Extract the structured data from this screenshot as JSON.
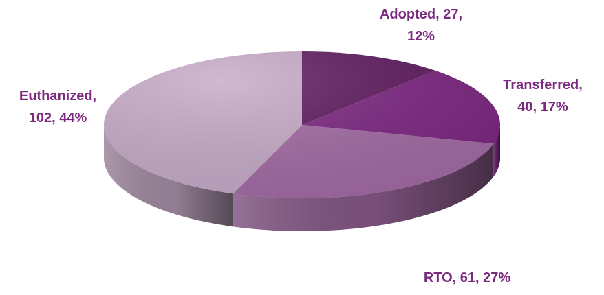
{
  "chart_data": {
    "type": "pie",
    "style": "3d",
    "title": "",
    "series": [
      {
        "slices": [
          {
            "label": "Adopted",
            "value": 27,
            "percent": "12%",
            "color": "#5e1a5e",
            "label_line1": "Adopted, 27,",
            "label_line2": "12%"
          },
          {
            "label": "Transferred",
            "value": 40,
            "percent": "17%",
            "color": "#7b2680",
            "label_line1": "Transferred,",
            "label_line2": "40, 17%"
          },
          {
            "label": "RTO",
            "value": 61,
            "percent": "27%",
            "color": "#a16aa3",
            "label_line1": "RTO, 61, 27%",
            "label_line2": ""
          },
          {
            "label": "Euthanized",
            "value": 102,
            "percent": "44%",
            "color": "#c5a9c6",
            "label_line1": "Euthanized,",
            "label_line2": "102, 44%"
          }
        ]
      }
    ],
    "label_color": "#7b2a7f"
  }
}
